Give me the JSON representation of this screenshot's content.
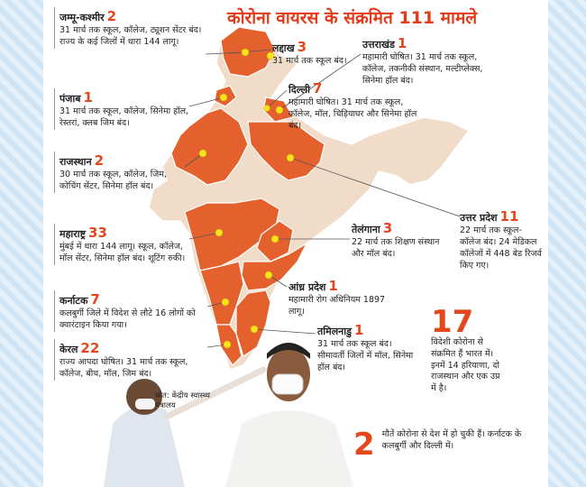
{
  "title": "कोरोना वायरस के संक्रमित 111 मामले",
  "states": [
    {
      "name": "जम्मू-कश्मीर",
      "count": 2,
      "text": "31 मार्च तक स्कूल, कॉलेज, ट्यूशन सेंटर बंद। राज्य के कई जिलों में धारा 144 लागू।"
    },
    {
      "name": "लद्दाख",
      "count": 3,
      "text": "31 मार्च तक स्कूल बंद।"
    },
    {
      "name": "उत्तराखंड",
      "count": 1,
      "text": "महामारी घोषित। 31 मार्च तक स्कूल, कॉलेज, तकनीकी संस्थान, मल्टीप्लेक्स, सिनेमा हॉल बंद।"
    },
    {
      "name": "पंजाब",
      "count": 1,
      "text": "31 मार्च तक स्कूल, कॉलेज, सिनेमा हॉल, रेस्तरां, क्लब जिम बंद।"
    },
    {
      "name": "दिल्ली",
      "count": 7,
      "text": "महामारी घोषित। 31 मार्च तक स्कूल, कॉलेज, मॉल, चिड़ियाघर और सिनेमा हॉल बंद।"
    },
    {
      "name": "राजस्थान",
      "count": 2,
      "text": "30 मार्च तक स्कूल, कॉलेज, जिम, कोचिंग सेंटर, सिनेमा हॉल बंद।"
    },
    {
      "name": "महाराष्ट्र",
      "count": 33,
      "text": "मुंबई में धारा 144 लागू। स्कूल, कॉलेज, मॉल सेंटर, सिनेमा हॉल बंद। शूटिंग रुकी।"
    },
    {
      "name": "तेलंगाना",
      "count": 3,
      "text": "22 मार्च तक शिक्षण संस्थान और मॉल बंद।"
    },
    {
      "name": "उत्तर प्रदेश",
      "count": 11,
      "text": "22 मार्च तक स्कूल-कॉलेज बंद। 24 मेडिकल कॉलेजों में 448 बेड रिजर्व किए गए।"
    },
    {
      "name": "कर्नाटक",
      "count": 7,
      "text": "कलबुर्गी जिले में विदेश से लौटे 16 लोगों को क्वारंटाइन किया गया।"
    },
    {
      "name": "आंध्र प्रदेश",
      "count": 1,
      "text": "महामारी रोग अधिनियम 1897 लागू।"
    },
    {
      "name": "केरल",
      "count": 22,
      "text": "राज्य आपदा घोषित। 31 मार्च तक स्कूल, कॉलेज, बीच, मॉल, जिम बंद।"
    },
    {
      "name": "तमिलनाडु",
      "count": 1,
      "text": "31 मार्च तक स्कूल बंद। सीमावर्ती जिलों में मॉल, सिनेमा हॉल बंद।"
    }
  ],
  "facts": [
    {
      "count": 17,
      "text": "विदेशी कोरोना से संक्रमित हैं भारत में। इनमें 14 हरियाणा, दो राजस्थान और एक उप्र में है।"
    },
    {
      "count": 2,
      "text": "मौतें कोरोना से देश में हो चुकी हैं। कर्नाटक के कलबुर्गी और दिल्ली में।"
    }
  ],
  "source": "स्रोत: केंद्रीय स्वास्थ्य मंत्रालय"
}
